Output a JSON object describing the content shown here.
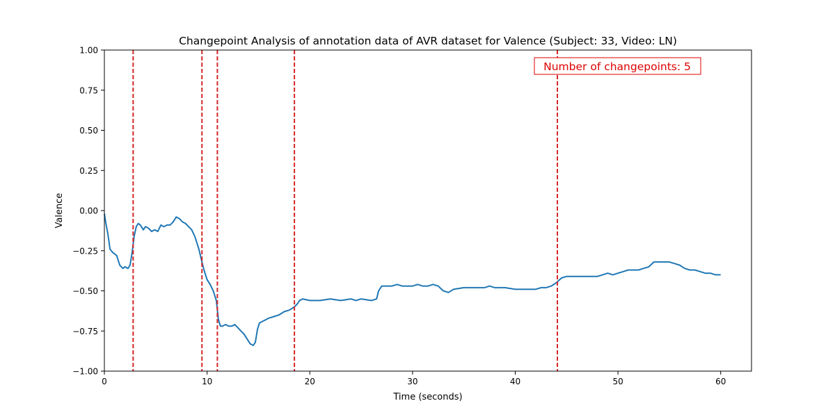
{
  "chart_data": {
    "type": "line",
    "title": "Changepoint Analysis of annotation data of AVR dataset for Valence (Subject: 33, Video: LN)",
    "xlabel": "Time (seconds)",
    "ylabel": "Valence",
    "xlim": [
      0,
      63
    ],
    "ylim": [
      -1.0,
      1.0
    ],
    "x_ticks": [
      0,
      10,
      20,
      30,
      40,
      50,
      60
    ],
    "x_tick_labels": [
      "0",
      "10",
      "20",
      "30",
      "40",
      "50",
      "60"
    ],
    "y_ticks": [
      1.0,
      0.75,
      0.5,
      0.25,
      0.0,
      -0.25,
      -0.5,
      -0.75,
      -1.0
    ],
    "y_tick_labels": [
      "1.00",
      "0.75",
      "0.50",
      "0.25",
      "0.00",
      "−0.25",
      "−0.50",
      "−0.75",
      "−1.00"
    ],
    "grid": false,
    "annotation": "Number of changepoints: 5",
    "changepoints": [
      2.8,
      9.5,
      11.0,
      18.5,
      44.1
    ],
    "colors": {
      "series": "#1f77b4",
      "changepoint": "#d62728",
      "annotation": "#dd0000"
    },
    "series": [
      {
        "x": [
          0,
          0.15,
          0.35,
          0.55,
          0.8,
          1.0,
          1.2,
          1.5,
          1.8,
          2.0,
          2.3,
          2.5,
          2.7,
          2.9,
          3.1,
          3.3,
          3.5,
          3.8,
          4.0,
          4.3,
          4.6,
          4.9,
          5.2,
          5.5,
          5.8,
          6.1,
          6.4,
          6.7,
          7.0,
          7.3,
          7.6,
          7.9,
          8.2,
          8.5,
          8.8,
          9.0,
          9.2,
          9.5,
          9.7,
          10.0,
          10.3,
          10.6,
          10.9,
          11.1,
          11.3,
          11.5,
          11.8,
          12.1,
          12.4,
          12.7,
          13.0,
          13.3,
          13.6,
          13.9,
          14.2,
          14.5,
          14.7,
          14.9,
          15.1,
          15.4,
          15.7,
          16.0,
          16.5,
          17.0,
          17.5,
          18.0,
          18.5,
          18.8,
          19.0,
          19.3,
          20.0,
          21.0,
          22.0,
          23.0,
          24.0,
          24.5,
          25.0,
          26.0,
          26.5,
          26.7,
          27.0,
          27.5,
          28.0,
          28.5,
          29.0,
          29.5,
          30.0,
          30.5,
          31.0,
          31.5,
          32.0,
          32.5,
          33.0,
          33.5,
          34.0,
          35.0,
          36.0,
          37.0,
          37.5,
          38.0,
          39.0,
          40.0,
          41.0,
          42.0,
          42.5,
          43.0,
          43.5,
          44.0,
          44.5,
          45.0,
          46.0,
          47.0,
          48.0,
          48.5,
          49.0,
          49.5,
          50.0,
          50.5,
          51.0,
          52.0,
          52.5,
          53.0,
          53.5,
          54.0,
          54.5,
          55.0,
          55.5,
          56.0,
          56.5,
          57.0,
          57.5,
          58.0,
          58.5,
          59.0,
          59.5,
          60.0
        ],
        "values": [
          -0.02,
          -0.08,
          -0.15,
          -0.24,
          -0.26,
          -0.27,
          -0.28,
          -0.34,
          -0.36,
          -0.35,
          -0.36,
          -0.34,
          -0.26,
          -0.16,
          -0.1,
          -0.08,
          -0.09,
          -0.12,
          -0.1,
          -0.11,
          -0.13,
          -0.12,
          -0.13,
          -0.09,
          -0.1,
          -0.09,
          -0.09,
          -0.07,
          -0.04,
          -0.05,
          -0.07,
          -0.08,
          -0.1,
          -0.12,
          -0.16,
          -0.2,
          -0.24,
          -0.32,
          -0.37,
          -0.43,
          -0.46,
          -0.5,
          -0.56,
          -0.68,
          -0.72,
          -0.72,
          -0.71,
          -0.72,
          -0.72,
          -0.71,
          -0.73,
          -0.75,
          -0.77,
          -0.8,
          -0.83,
          -0.84,
          -0.82,
          -0.74,
          -0.7,
          -0.69,
          -0.68,
          -0.67,
          -0.66,
          -0.65,
          -0.63,
          -0.62,
          -0.6,
          -0.58,
          -0.56,
          -0.55,
          -0.56,
          -0.56,
          -0.55,
          -0.56,
          -0.55,
          -0.56,
          -0.55,
          -0.56,
          -0.55,
          -0.5,
          -0.47,
          -0.47,
          -0.47,
          -0.46,
          -0.47,
          -0.47,
          -0.47,
          -0.46,
          -0.47,
          -0.47,
          -0.46,
          -0.47,
          -0.5,
          -0.51,
          -0.49,
          -0.48,
          -0.48,
          -0.48,
          -0.47,
          -0.48,
          -0.48,
          -0.49,
          -0.49,
          -0.49,
          -0.48,
          -0.48,
          -0.47,
          -0.45,
          -0.42,
          -0.41,
          -0.41,
          -0.41,
          -0.41,
          -0.4,
          -0.39,
          -0.4,
          -0.39,
          -0.38,
          -0.37,
          -0.37,
          -0.36,
          -0.35,
          -0.32,
          -0.32,
          -0.32,
          -0.32,
          -0.33,
          -0.34,
          -0.36,
          -0.37,
          -0.37,
          -0.38,
          -0.39,
          -0.39,
          -0.4,
          -0.4
        ]
      }
    ]
  }
}
